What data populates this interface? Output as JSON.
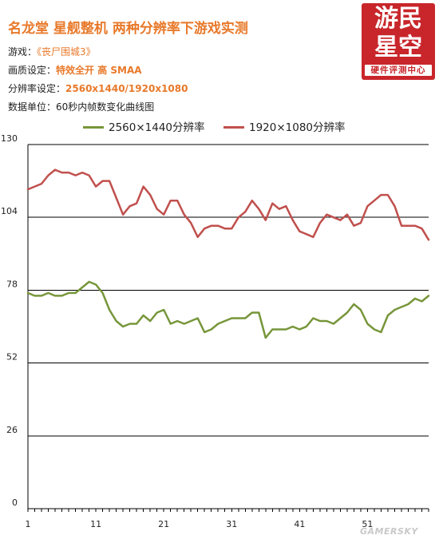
{
  "header": {
    "title": "名龙堂 星舰整机 两种分辨率下游戏实测",
    "game_label": "游戏：",
    "game_value": "《丧尸围城3》",
    "quality_label": "画质设定：",
    "quality_value": "特效全开  高 SMAA",
    "resolution_label": "分辨率设定：",
    "resolution_value": "2560x1440/1920x1080",
    "unit_text": "数据单位：60秒内帧数变化曲线图"
  },
  "logo": {
    "line1": "游民",
    "line2": "星空",
    "line3": "硬件评测中心",
    "color": "#c8262b"
  },
  "watermark": "GAMERSKY",
  "chart_data": {
    "type": "line",
    "x": [
      1,
      2,
      3,
      4,
      5,
      6,
      7,
      8,
      9,
      10,
      11,
      12,
      13,
      14,
      15,
      16,
      17,
      18,
      19,
      20,
      21,
      22,
      23,
      24,
      25,
      26,
      27,
      28,
      29,
      30,
      31,
      32,
      33,
      34,
      35,
      36,
      37,
      38,
      39,
      40,
      41,
      42,
      43,
      44,
      45,
      46,
      47,
      48,
      49,
      50,
      51,
      52,
      53,
      54,
      55,
      56,
      57,
      58,
      59,
      60
    ],
    "xticks": [
      1,
      11,
      21,
      31,
      41,
      51
    ],
    "ylim": [
      0,
      130
    ],
    "yticks": [
      0,
      26,
      52,
      78,
      104,
      130
    ],
    "series": [
      {
        "name": "2560×1440分辨率",
        "color": "#77963a",
        "values": [
          77,
          76,
          76,
          77,
          76,
          76,
          77,
          77,
          79,
          81,
          80,
          77,
          71,
          67,
          65,
          66,
          66,
          69,
          67,
          70,
          71,
          66,
          67,
          66,
          67,
          68,
          63,
          64,
          66,
          67,
          68,
          68,
          68,
          70,
          70,
          61,
          64,
          64,
          64,
          65,
          64,
          65,
          68,
          67,
          67,
          66,
          68,
          70,
          73,
          71,
          66,
          64,
          63,
          69,
          71,
          72,
          73,
          75,
          74,
          76
        ]
      },
      {
        "name": "1920×1080分辨率",
        "color": "#c0504d",
        "values": [
          114,
          115,
          116,
          119,
          121,
          120,
          120,
          119,
          120,
          119,
          115,
          117,
          117,
          111,
          105,
          108,
          109,
          115,
          112,
          107,
          105,
          110,
          110,
          105,
          102,
          97,
          100,
          101,
          101,
          100,
          100,
          104,
          106,
          110,
          107,
          103,
          109,
          107,
          108,
          103,
          99,
          98,
          97,
          102,
          105,
          104,
          103,
          105,
          101,
          102,
          108,
          110,
          112,
          112,
          108,
          101,
          101,
          101,
          100,
          96
        ]
      }
    ]
  }
}
